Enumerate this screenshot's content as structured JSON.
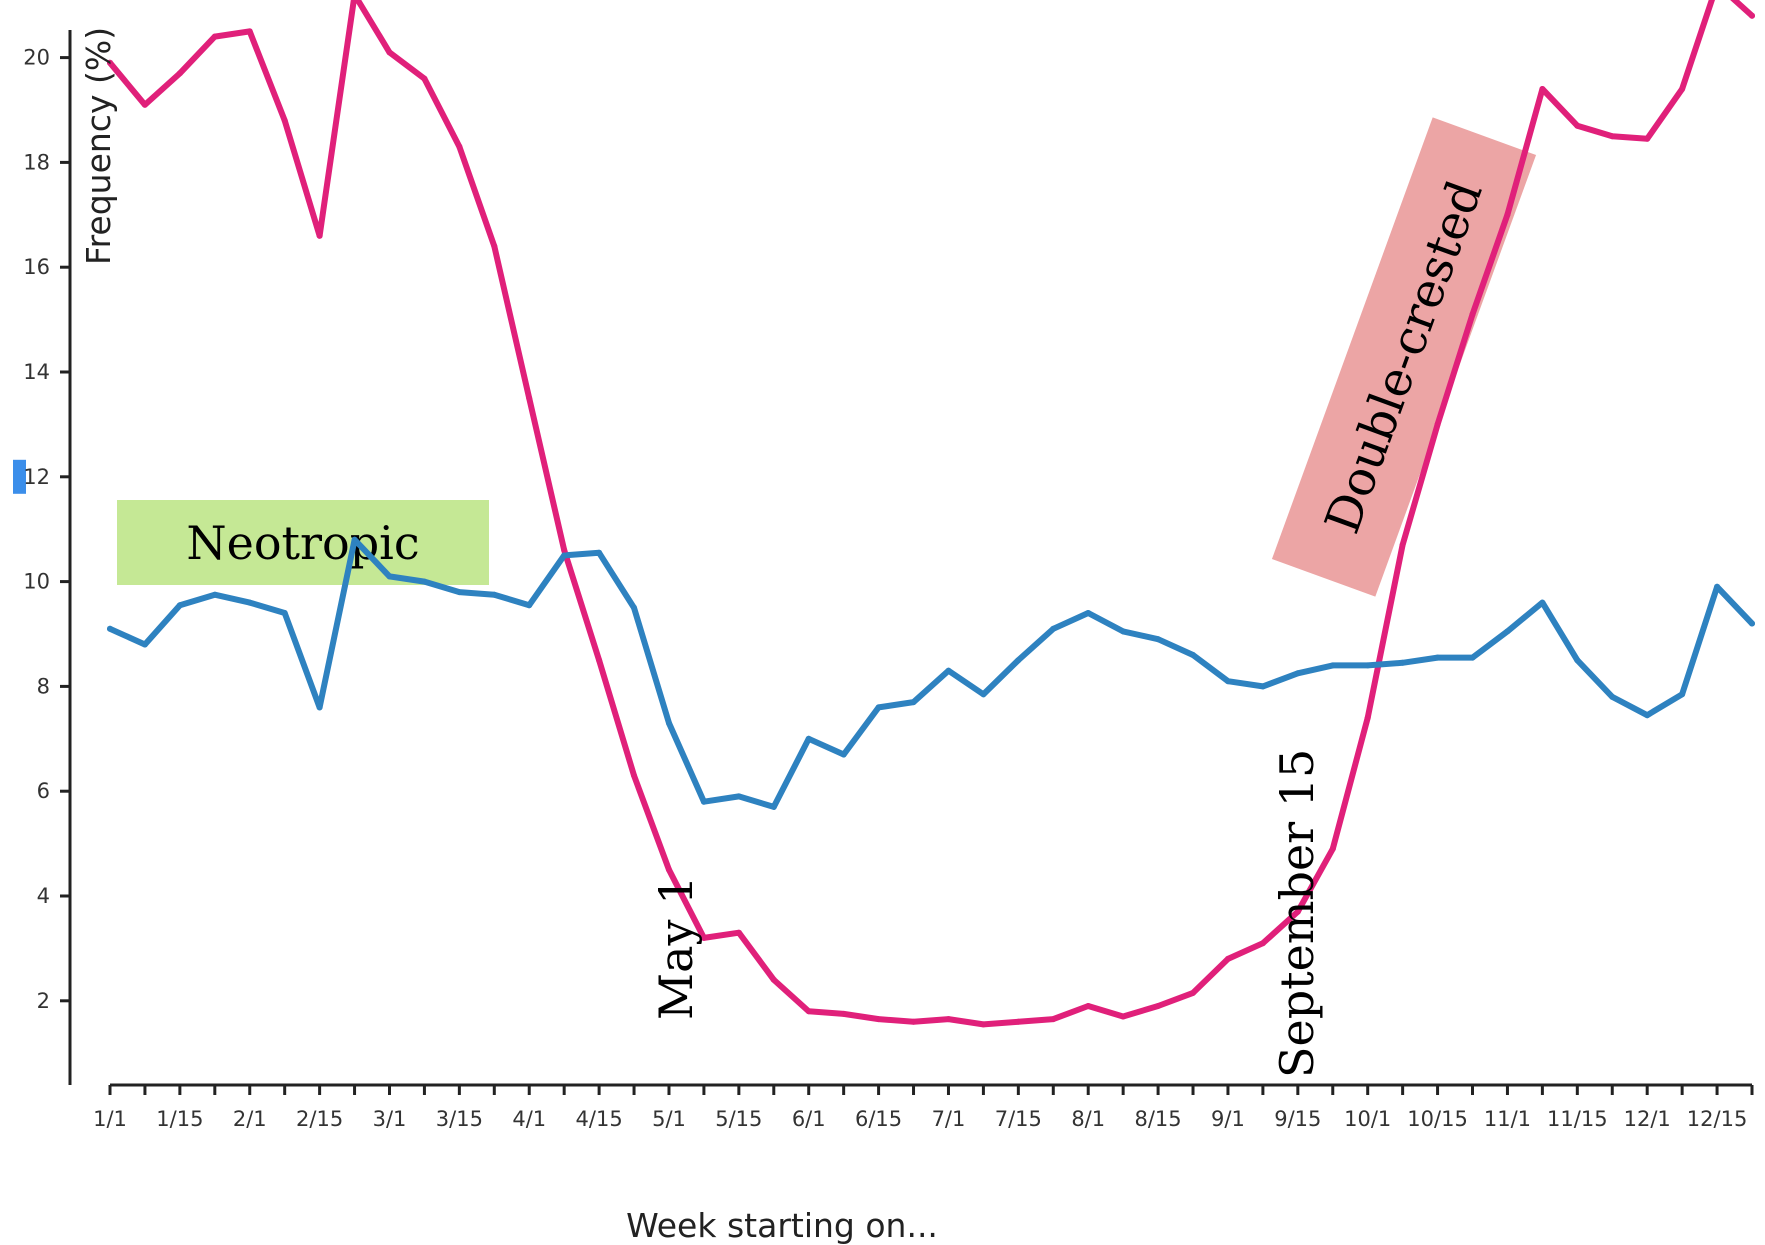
{
  "chart_data": {
    "type": "line",
    "xlabel": "Week starting on...",
    "ylabel": "Frequency (%)",
    "ylim": [
      1.5,
      21.5
    ],
    "yticks": [
      2,
      4,
      6,
      8,
      10,
      12,
      14,
      16,
      18,
      20
    ],
    "xtick_labels": [
      "1/1",
      "1/15",
      "2/1",
      "2/15",
      "3/1",
      "3/15",
      "4/1",
      "4/15",
      "5/1",
      "5/15",
      "6/1",
      "6/15",
      "7/1",
      "7/15",
      "8/1",
      "8/15",
      "9/1",
      "9/15",
      "10/1",
      "10/15",
      "11/1",
      "11/15",
      "12/1",
      "12/15"
    ],
    "weeks": 48,
    "grid": false,
    "series": [
      {
        "color": "#e0207a",
        "values": [
          19.9,
          19.1,
          19.7,
          20.4,
          20.5,
          18.8,
          16.6,
          21.2,
          20.1,
          19.6,
          18.3,
          16.4,
          13.5,
          10.6,
          8.5,
          6.3,
          4.5,
          3.2,
          3.3,
          2.4,
          1.8,
          1.75,
          1.65,
          1.6,
          1.65,
          1.55,
          1.6,
          1.65,
          1.9,
          1.7,
          1.9,
          2.15,
          2.8,
          3.1,
          3.7,
          4.9,
          7.4,
          10.7,
          13.0,
          15.1,
          17.0,
          19.4,
          18.7,
          18.5,
          18.45,
          19.4,
          21.4,
          20.8
        ]
      },
      {
        "color": "#2e82c0",
        "values": [
          9.1,
          8.8,
          9.55,
          9.75,
          9.6,
          9.4,
          7.6,
          10.8,
          10.1,
          10.0,
          9.8,
          9.75,
          9.55,
          10.5,
          10.55,
          9.5,
          7.3,
          5.8,
          5.9,
          5.7,
          7.0,
          6.7,
          7.6,
          7.7,
          8.3,
          7.85,
          8.5,
          9.1,
          9.4,
          9.05,
          8.9,
          8.6,
          8.1,
          8.0,
          8.25,
          8.4,
          8.4,
          8.45,
          8.55,
          8.55,
          9.05,
          9.6,
          8.5,
          7.8,
          7.45,
          7.85,
          9.9,
          9.2
        ]
      }
    ],
    "annotations": {
      "neotropic": "Neotropic",
      "double_crested": "Double-crested",
      "may1": "May 1",
      "sept15": "September 15"
    }
  },
  "colors": {
    "neotropic_box": "#c5e895",
    "double_crested_box": "#eca5a5",
    "tick_highlight": "#3b8eea"
  }
}
